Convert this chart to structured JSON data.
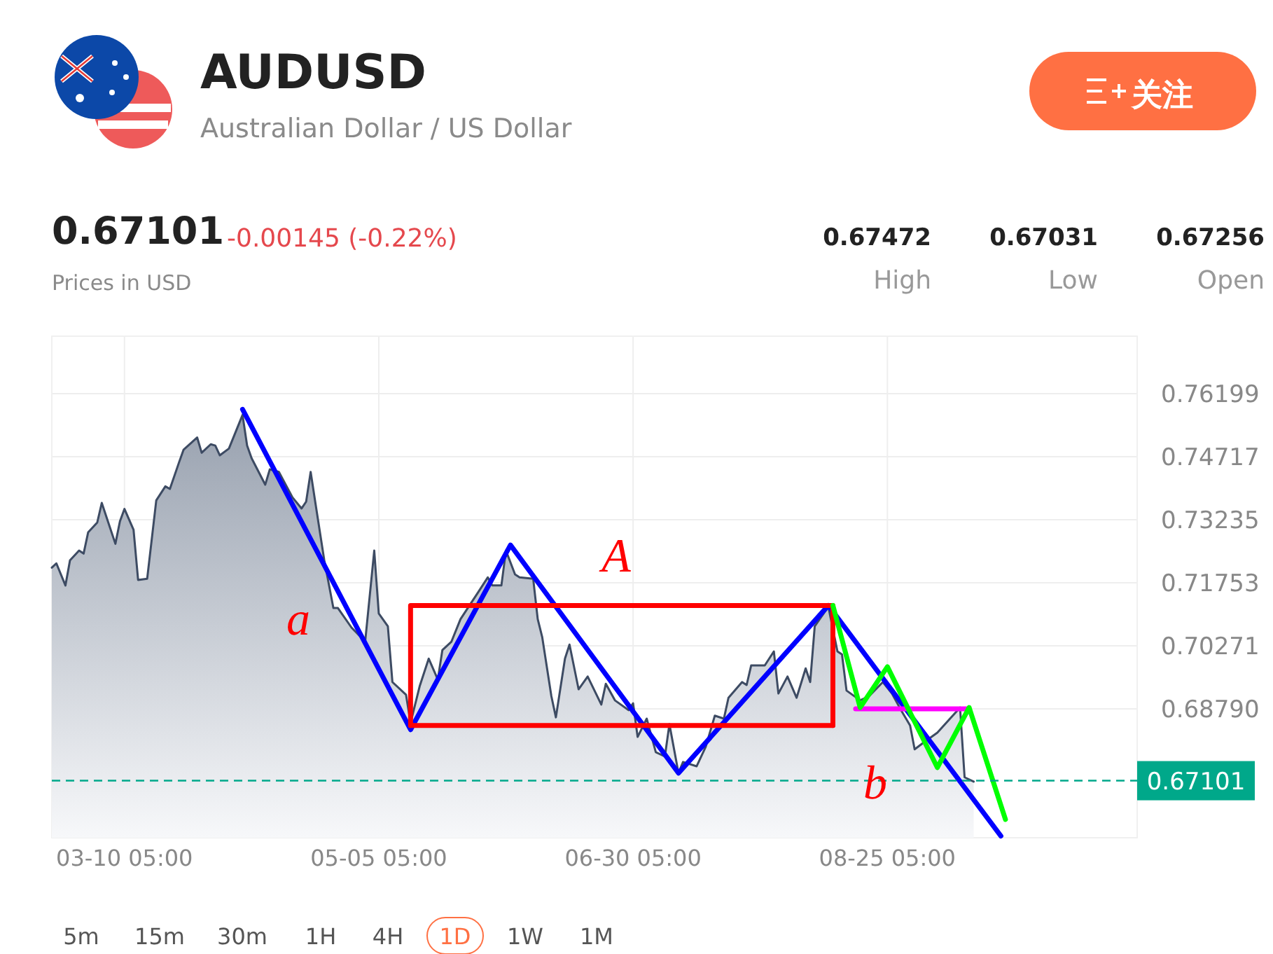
{
  "chart_data": {
    "type": "area",
    "title": "AUDUSD",
    "subtitle": "Australian Dollar / US Dollar",
    "x": [
      "--02-22",
      "--02-23",
      "--02-25",
      "--02-26",
      "--02-28",
      "--03-01",
      "--03-02",
      "--03-04",
      "--03-05",
      "--03-08",
      "--03-09",
      "--03-10",
      "--03-12",
      "--03-13",
      "--03-15",
      "--03-17",
      "--03-19",
      "--03-20",
      "--03-22",
      "--03-23",
      "--03-26",
      "--03-27",
      "--03-29",
      "--03-30",
      "--03-31",
      "--04-02",
      "--04-05",
      "--04-06",
      "--04-07",
      "--04-10",
      "--04-11",
      "--04-13",
      "--04-16",
      "--04-18",
      "--04-19",
      "--04-20",
      "--04-21",
      "--04-23",
      "--04-25",
      "--04-26",
      "--04-29",
      "--05-02",
      "--05-04",
      "--05-05",
      "--05-07",
      "--05-08",
      "--05-11",
      "--05-12",
      "--05-14",
      "--05-16",
      "--05-18",
      "--05-19",
      "--05-21",
      "--05-23",
      "--05-27",
      "--05-29",
      "--05-30",
      "--06-01",
      "--06-02",
      "--06-04",
      "--06-05",
      "--06-08",
      "--06-09",
      "--06-10",
      "--06-12",
      "--06-13",
      "--06-15",
      "--06-16",
      "--06-18",
      "--06-20",
      "--06-23",
      "--06-24",
      "--06-26",
      "--06-29",
      "--06-30",
      "--07-01",
      "--07-03",
      "--07-05",
      "--07-07",
      "--07-08",
      "--07-10",
      "--07-11",
      "--07-14",
      "--07-16",
      "--07-18",
      "--07-20",
      "--07-21",
      "--07-24",
      "--07-25",
      "--07-26",
      "--07-29",
      "--07-31",
      "--08-01",
      "--08-03",
      "--08-05",
      "--08-07",
      "--08-08",
      "--08-09",
      "--08-12",
      "--08-14",
      "--08-15",
      "--08-16",
      "--08-19",
      "--08-21",
      "--08-24",
      "--08-26",
      "--08-28",
      "--08-30",
      "--08-31",
      "--09-02",
      "--09-05",
      "--09-10",
      "--09-11",
      "--09-13"
    ],
    "series": [
      {
        "color": "#3d4b63",
        "values": [
          0.7211,
          0.7221,
          0.7169,
          0.7228,
          0.7251,
          0.7244,
          0.7294,
          0.7317,
          0.7363,
          0.7267,
          0.732,
          0.7349,
          0.73,
          0.7182,
          0.7185,
          0.7369,
          0.7402,
          0.7396,
          0.7458,
          0.7488,
          0.7517,
          0.7481,
          0.7501,
          0.7498,
          0.7475,
          0.7491,
          0.757,
          0.7498,
          0.7468,
          0.7406,
          0.7442,
          0.7436,
          0.7376,
          0.735,
          0.7366,
          0.7436,
          0.7366,
          0.7228,
          0.7116,
          0.7116,
          0.707,
          0.7037,
          0.7251,
          0.7103,
          0.7073,
          0.6942,
          0.6912,
          0.6846,
          0.6932,
          0.6997,
          0.6948,
          0.7017,
          0.7037,
          0.709,
          0.7155,
          0.7188,
          0.7169,
          0.7169,
          0.7251,
          0.7195,
          0.7188,
          0.7185,
          0.709,
          0.7047,
          0.6909,
          0.6859,
          0.6997,
          0.703,
          0.6925,
          0.6955,
          0.6889,
          0.6938,
          0.6899,
          0.6876,
          0.6892,
          0.6813,
          0.6856,
          0.6777,
          0.6767,
          0.6843,
          0.6728,
          0.6754,
          0.6744,
          0.679,
          0.6863,
          0.6856,
          0.6905,
          0.6942,
          0.6935,
          0.6981,
          0.6981,
          0.7014,
          0.6915,
          0.6955,
          0.6905,
          0.6974,
          0.6942,
          0.7073,
          0.7119,
          0.7014,
          0.7007,
          0.6922,
          0.6899,
          0.6909,
          0.6942,
          0.6915,
          0.6876,
          0.684,
          0.6784,
          0.68,
          0.6823,
          0.6882,
          0.6718,
          0.6708
        ]
      },
      {
        "type": "line",
        "color": "#0000ff",
        "x": [
          "--04-05",
          "--05-12",
          "--06-03",
          "--07-10",
          "--08-12",
          "--09-19"
        ],
        "values": [
          0.7583,
          0.683,
          0.7264,
          0.6728,
          0.7122,
          0.658
        ]
      },
      {
        "type": "line",
        "color": "#ff0000",
        "x": [
          "--05-12",
          "--05-12",
          "--08-13",
          "--08-13"
        ],
        "values": [
          0.684,
          0.7122,
          0.7122,
          0.684
        ]
      },
      {
        "type": "line",
        "color": "#ff0000",
        "x": [
          "--05-12",
          "--08-13"
        ],
        "values": [
          0.684,
          0.684
        ]
      },
      {
        "type": "line",
        "color": "#ff00ff",
        "x": [
          "--08-18",
          "--09-12"
        ],
        "values": [
          0.6879,
          0.6879
        ]
      },
      {
        "type": "line",
        "color": "#00ff00",
        "x": [
          "--08-13",
          "--08-19",
          "--08-25",
          "--09-05",
          "--09-12",
          "--09-20"
        ],
        "values": [
          0.7122,
          0.6882,
          0.6978,
          0.6741,
          0.6882,
          0.6619
        ]
      }
    ],
    "xlim": [
      "--02-22",
      "--10-19"
    ],
    "xticks": [
      {
        "value": "--03-10",
        "label": "03-10 05:00"
      },
      {
        "value": "--05-05",
        "label": "05-05 05:00"
      },
      {
        "value": "--06-30",
        "label": "06-30 05:00"
      },
      {
        "value": "--08-25",
        "label": "08-25 05:00"
      }
    ],
    "ylim": [
      0.6576,
      0.7755
    ],
    "yticks": [
      0.76199,
      0.74717,
      0.73235,
      0.71753,
      0.70271,
      {
        "value": 0.6879,
        "label": "0.68790"
      }
    ],
    "grid": true,
    "marker": "none",
    "ref_lines": [
      {
        "axis": "y",
        "value": 0.67101,
        "label": "0.67101",
        "color": "#00a88a",
        "line_style": "dashed"
      }
    ],
    "annotations": [
      "0.67101",
      "-0.00145 (-0.22%)",
      "Prices in USD",
      "0.67472",
      "High",
      "0.67031",
      "Low",
      "0.67256",
      "Open",
      "关注",
      "5m",
      "15m",
      "30m",
      "1H",
      "4H",
      "1D",
      "1W",
      "1M",
      "a",
      "A",
      "b"
    ]
  }
}
